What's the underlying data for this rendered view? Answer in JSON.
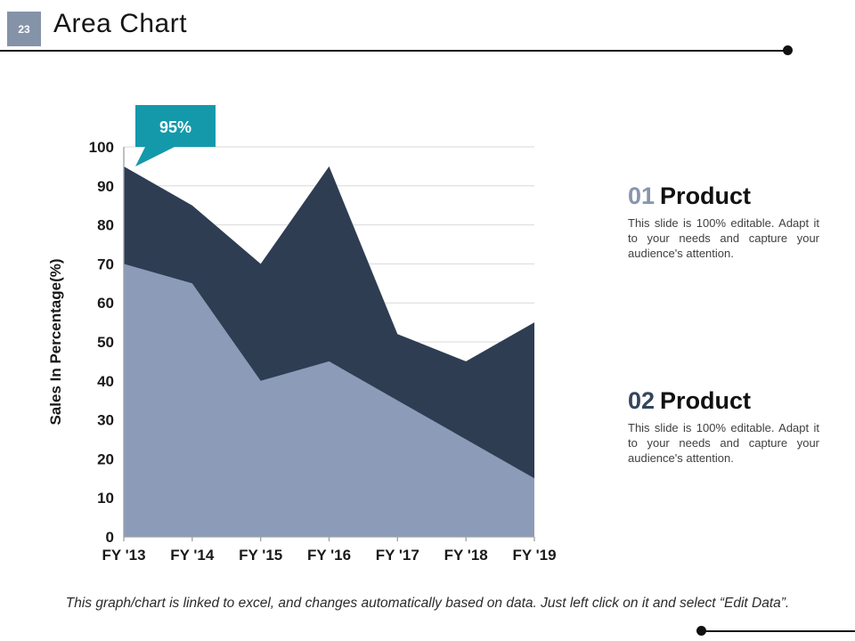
{
  "slide": {
    "number": "23",
    "title": "Area Chart",
    "footer": "This graph/chart is linked to excel, and changes automatically based on data. Just left click on it and select “Edit Data”."
  },
  "chart_data": {
    "type": "area",
    "categories": [
      "FY '13",
      "FY '14",
      "FY '15",
      "FY '16",
      "FY '17",
      "FY '18",
      "FY '19"
    ],
    "series": [
      {
        "name": "Product 01",
        "color": "#2e3d52",
        "values": [
          95,
          85,
          70,
          95,
          52,
          45,
          55
        ]
      },
      {
        "name": "Product 02",
        "color": "#8c9cb8",
        "values": [
          70,
          65,
          40,
          45,
          35,
          25,
          15
        ]
      }
    ],
    "ylabel": "Sales In Percentage(%)",
    "ylim": [
      0,
      100
    ],
    "ytick_step": 10,
    "grid": true,
    "legend": "none",
    "gridline_color": "#d9d9d9",
    "axis_color": "#9aa0a6",
    "callout": {
      "text": "95%",
      "color": "#1499ab",
      "points_to_category": "FY '13",
      "points_to_value": 95
    }
  },
  "sections": [
    {
      "number": "01",
      "number_color": "#8796ac",
      "heading": "Product",
      "body": "This slide is 100% editable. Adapt it to your needs and capture your audience's attention."
    },
    {
      "number": "02",
      "number_color": "#34455c",
      "heading": "Product",
      "body": "This slide is 100% editable. Adapt it to your needs and capture your audience's attention."
    }
  ]
}
